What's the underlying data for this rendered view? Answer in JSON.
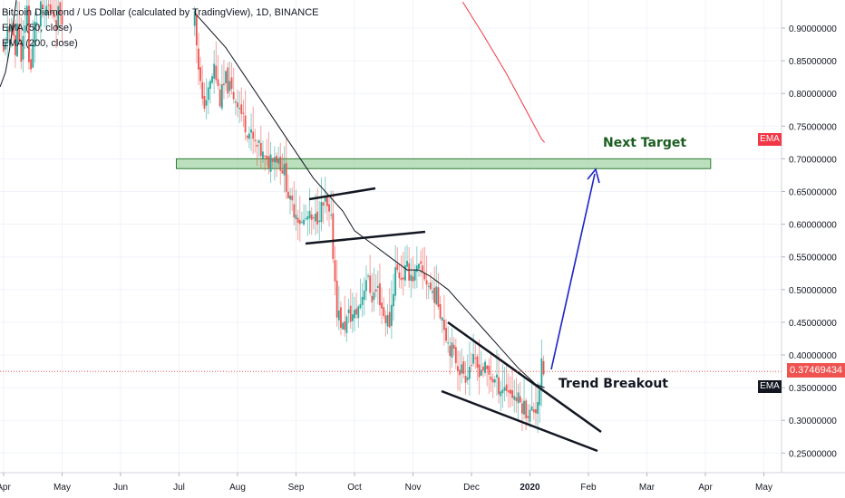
{
  "legend": {
    "title": "Bitcoin Diamond / US Dollar (calculated by TradingView), 1D, BINANCE",
    "ema50": "EMA (50, close)",
    "ema200": "EMA (200, close)"
  },
  "annotations": {
    "next_target": "Next Target",
    "trend_breakout": "Trend Breakout"
  },
  "tags": {
    "ema_red": "EMA",
    "ema_black": "EMA",
    "current_price": "0.37469434"
  },
  "colors": {
    "up": "#26a69a",
    "down": "#ef5350",
    "ema50": "#131722",
    "ema200": "#f23645",
    "target_fill": "#a5d6a7",
    "arrow": "#1e23c8",
    "price_line": "#ef5350"
  },
  "chart_data": {
    "type": "candlestick",
    "y_ticks": [
      "0.90000000",
      "0.85000000",
      "0.80000000",
      "0.75000000",
      "0.70000000",
      "0.65000000",
      "0.60000000",
      "0.55000000",
      "0.50000000",
      "0.45000000",
      "0.40000000",
      "0.35000000",
      "0.30000000",
      "0.25000000"
    ],
    "x_ticks": [
      "Apr",
      "May",
      "Jun",
      "Jul",
      "Aug",
      "Sep",
      "Oct",
      "Nov",
      "Dec",
      "2020",
      "Feb",
      "Mar",
      "Apr",
      "May"
    ],
    "ylim": [
      0.22,
      0.94
    ],
    "current_price": 0.37469434,
    "target_zone": [
      0.685,
      0.7
    ],
    "close_path": [
      [
        0.0,
        0.86
      ],
      [
        0.05,
        0.9
      ],
      [
        0.1,
        0.88
      ],
      [
        0.15,
        0.92
      ],
      [
        0.2,
        0.86
      ],
      [
        0.25,
        0.92
      ],
      [
        0.3,
        0.84
      ],
      [
        0.35,
        0.9
      ],
      [
        0.4,
        0.93
      ],
      [
        0.45,
        0.82
      ],
      [
        0.5,
        0.87
      ],
      [
        0.55,
        0.92
      ],
      [
        0.6,
        0.9
      ],
      [
        0.65,
        0.94
      ],
      [
        0.7,
        0.91
      ],
      [
        0.75,
        0.94
      ],
      [
        0.8,
        0.92
      ],
      [
        0.85,
        0.93
      ],
      [
        0.9,
        0.91
      ],
      [
        0.95,
        0.93
      ],
      [
        1.0,
        0.92
      ],
      [
        3.25,
        0.94
      ],
      [
        3.3,
        0.88
      ],
      [
        3.4,
        0.78
      ],
      [
        3.5,
        0.8
      ],
      [
        3.6,
        0.84
      ],
      [
        3.7,
        0.79
      ],
      [
        3.8,
        0.82
      ],
      [
        3.9,
        0.8
      ],
      [
        4.0,
        0.79
      ],
      [
        4.1,
        0.76
      ],
      [
        4.2,
        0.74
      ],
      [
        4.3,
        0.72
      ],
      [
        4.4,
        0.71
      ],
      [
        4.5,
        0.69
      ],
      [
        4.6,
        0.71
      ],
      [
        4.7,
        0.7
      ],
      [
        4.8,
        0.68
      ],
      [
        4.9,
        0.63
      ],
      [
        5.0,
        0.62
      ],
      [
        5.1,
        0.6
      ],
      [
        5.2,
        0.61
      ],
      [
        5.3,
        0.6
      ],
      [
        5.4,
        0.62
      ],
      [
        5.5,
        0.63
      ],
      [
        5.6,
        0.6
      ],
      [
        5.7,
        0.47
      ],
      [
        5.8,
        0.44
      ],
      [
        5.9,
        0.46
      ],
      [
        6.0,
        0.46
      ],
      [
        6.1,
        0.48
      ],
      [
        6.2,
        0.52
      ],
      [
        6.3,
        0.49
      ],
      [
        6.4,
        0.5
      ],
      [
        6.5,
        0.46
      ],
      [
        6.6,
        0.45
      ],
      [
        6.7,
        0.53
      ],
      [
        6.8,
        0.52
      ],
      [
        6.9,
        0.53
      ],
      [
        7.0,
        0.52
      ],
      [
        7.1,
        0.53
      ],
      [
        7.2,
        0.52
      ],
      [
        7.3,
        0.5
      ],
      [
        7.4,
        0.49
      ],
      [
        7.5,
        0.46
      ],
      [
        7.6,
        0.42
      ],
      [
        7.7,
        0.4
      ],
      [
        7.8,
        0.38
      ],
      [
        7.9,
        0.37
      ],
      [
        8.0,
        0.39
      ],
      [
        8.1,
        0.38
      ],
      [
        8.2,
        0.38
      ],
      [
        8.3,
        0.37
      ],
      [
        8.4,
        0.36
      ],
      [
        8.5,
        0.35
      ],
      [
        8.6,
        0.35
      ],
      [
        8.7,
        0.34
      ],
      [
        8.8,
        0.33
      ],
      [
        8.9,
        0.32
      ],
      [
        9.0,
        0.31
      ],
      [
        9.1,
        0.32
      ],
      [
        9.15,
        0.34
      ],
      [
        9.2,
        0.38
      ],
      [
        9.25,
        0.37
      ]
    ],
    "ema50": [
      [
        3.3,
        0.92
      ],
      [
        3.5,
        0.9
      ],
      [
        3.8,
        0.87
      ],
      [
        4.1,
        0.83
      ],
      [
        4.4,
        0.79
      ],
      [
        4.7,
        0.75
      ],
      [
        5.0,
        0.71
      ],
      [
        5.3,
        0.67
      ],
      [
        5.6,
        0.64
      ],
      [
        5.8,
        0.62
      ],
      [
        6.0,
        0.59
      ],
      [
        6.3,
        0.57
      ],
      [
        6.6,
        0.55
      ],
      [
        6.9,
        0.53
      ],
      [
        7.1,
        0.53
      ],
      [
        7.3,
        0.52
      ],
      [
        7.6,
        0.5
      ],
      [
        7.9,
        0.47
      ],
      [
        8.2,
        0.44
      ],
      [
        8.5,
        0.41
      ],
      [
        8.8,
        0.38
      ],
      [
        9.1,
        0.355
      ],
      [
        9.25,
        0.35
      ]
    ],
    "ema200": [
      [
        7.85,
        0.94
      ],
      [
        8.2,
        0.89
      ],
      [
        8.6,
        0.83
      ],
      [
        8.9,
        0.78
      ],
      [
        9.2,
        0.73
      ],
      [
        9.25,
        0.725
      ]
    ]
  }
}
